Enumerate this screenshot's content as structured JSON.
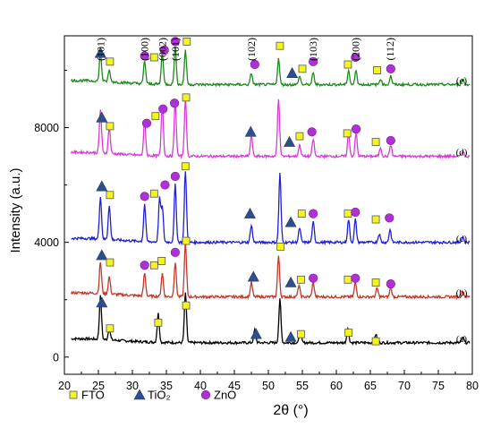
{
  "chart_data": {
    "type": "line",
    "xlabel": "2θ (°)",
    "ylabel": "Intensity (a.u.)",
    "xlim": [
      20,
      80
    ],
    "ylim": [
      -600,
      11200
    ],
    "x_ticks": [
      20,
      25,
      30,
      35,
      40,
      45,
      50,
      55,
      60,
      65,
      70,
      75,
      80
    ],
    "y_ticks": [
      0,
      4000,
      8000
    ],
    "grid": false,
    "legend": {
      "placement": "bottom-left",
      "items": [
        {
          "label": "FTO",
          "marker": "square",
          "color": "#f5f51e"
        },
        {
          "label": "TiO₂",
          "marker": "triangle",
          "color": "#2e4f8c"
        },
        {
          "label": "ZnO",
          "marker": "circle",
          "color": "#b030d8"
        }
      ]
    },
    "plane_labels": [
      {
        "text": "(101)",
        "x": 25.3
      },
      {
        "text": "(100)",
        "x": 31.8
      },
      {
        "text": "(002)",
        "x": 34.4
      },
      {
        "text": "(101)",
        "x": 36.3
      },
      {
        "text": "(102)",
        "x": 47.5
      },
      {
        "text": "(103)",
        "x": 56.6
      },
      {
        "text": "(200)",
        "x": 62.8
      },
      {
        "text": "(112)",
        "x": 67.9
      }
    ],
    "series": [
      {
        "name": "(a)",
        "color": "#000000",
        "baseline": 500,
        "peaks": [
          [
            25.3,
            1500
          ],
          [
            26.6,
            400
          ],
          [
            33.8,
            1000
          ],
          [
            37.8,
            1750
          ],
          [
            48.0,
            450
          ],
          [
            51.7,
            1500
          ],
          [
            54.7,
            350
          ],
          [
            61.7,
            500
          ],
          [
            65.8,
            300
          ],
          [
            78.6,
            200
          ]
        ],
        "markers": [
          {
            "type": "triangle",
            "x": 25.5,
            "y": 1900
          },
          {
            "type": "square",
            "x": 26.7,
            "y": 1000
          },
          {
            "type": "square",
            "x": 33.8,
            "y": 1200
          },
          {
            "type": "square",
            "x": 37.9,
            "y": 1800
          },
          {
            "type": "triangle",
            "x": 48.2,
            "y": 800
          },
          {
            "type": "triangle",
            "x": 53.3,
            "y": 700
          },
          {
            "type": "square",
            "x": 54.8,
            "y": 800
          },
          {
            "type": "square",
            "x": 61.8,
            "y": 850
          },
          {
            "type": "square",
            "x": 65.8,
            "y": 550
          }
        ]
      },
      {
        "name": "(b)",
        "color": "#c0392b",
        "baseline": 2100,
        "peaks": [
          [
            25.3,
            1100
          ],
          [
            26.6,
            600
          ],
          [
            31.8,
            800
          ],
          [
            34.4,
            800
          ],
          [
            36.3,
            1200
          ],
          [
            37.8,
            1900
          ],
          [
            47.5,
            500
          ],
          [
            51.5,
            1400
          ],
          [
            54.5,
            400
          ],
          [
            56.6,
            500
          ],
          [
            62.8,
            500
          ],
          [
            66.0,
            300
          ],
          [
            68.0,
            300
          ],
          [
            78.6,
            200
          ]
        ],
        "markers": [
          {
            "type": "triangle",
            "x": 25.5,
            "y": 3550
          },
          {
            "type": "square",
            "x": 26.7,
            "y": 3300
          },
          {
            "type": "circle",
            "x": 31.8,
            "y": 3200
          },
          {
            "type": "square",
            "x": 33.2,
            "y": 3200
          },
          {
            "type": "square",
            "x": 34.3,
            "y": 3350
          },
          {
            "type": "circle",
            "x": 36.3,
            "y": 3650
          },
          {
            "type": "square",
            "x": 37.9,
            "y": 4050
          },
          {
            "type": "triangle",
            "x": 47.8,
            "y": 2800
          },
          {
            "type": "square",
            "x": 51.8,
            "y": 3850
          },
          {
            "type": "triangle",
            "x": 53.3,
            "y": 2600
          },
          {
            "type": "square",
            "x": 54.8,
            "y": 2700
          },
          {
            "type": "circle",
            "x": 56.6,
            "y": 2750
          },
          {
            "type": "square",
            "x": 61.7,
            "y": 2700
          },
          {
            "type": "circle",
            "x": 62.8,
            "y": 2750
          },
          {
            "type": "square",
            "x": 65.8,
            "y": 2600
          },
          {
            "type": "circle",
            "x": 68.0,
            "y": 2550
          }
        ]
      },
      {
        "name": "(c)",
        "color": "#1f1fd6",
        "baseline": 4000,
        "peaks": [
          [
            25.3,
            1500
          ],
          [
            26.6,
            1200
          ],
          [
            31.8,
            1300
          ],
          [
            34.0,
            1500
          ],
          [
            34.4,
            1200
          ],
          [
            36.3,
            2000
          ],
          [
            37.8,
            2500
          ],
          [
            47.5,
            600
          ],
          [
            51.7,
            2400
          ],
          [
            54.6,
            500
          ],
          [
            56.6,
            700
          ],
          [
            61.8,
            800
          ],
          [
            62.8,
            800
          ],
          [
            66.3,
            300
          ],
          [
            67.9,
            450
          ],
          [
            78.6,
            200
          ]
        ],
        "markers": [
          {
            "type": "triangle",
            "x": 25.5,
            "y": 5950
          },
          {
            "type": "square",
            "x": 26.7,
            "y": 5650
          },
          {
            "type": "circle",
            "x": 31.8,
            "y": 5600
          },
          {
            "type": "square",
            "x": 33.2,
            "y": 5700
          },
          {
            "type": "circle",
            "x": 34.8,
            "y": 6000
          },
          {
            "type": "circle",
            "x": 36.3,
            "y": 6300
          },
          {
            "type": "square",
            "x": 37.8,
            "y": 6650
          },
          {
            "type": "triangle",
            "x": 47.3,
            "y": 5000
          },
          {
            "type": "triangle",
            "x": 53.3,
            "y": 4700
          },
          {
            "type": "square",
            "x": 54.9,
            "y": 5000
          },
          {
            "type": "circle",
            "x": 56.6,
            "y": 5000
          },
          {
            "type": "square",
            "x": 61.7,
            "y": 5000
          },
          {
            "type": "circle",
            "x": 62.8,
            "y": 5050
          },
          {
            "type": "square",
            "x": 65.8,
            "y": 4800
          },
          {
            "type": "circle",
            "x": 67.8,
            "y": 4850
          }
        ]
      },
      {
        "name": "(d)",
        "color": "#d63bd6",
        "baseline": 7000,
        "peaks": [
          [
            25.3,
            1500
          ],
          [
            26.6,
            900
          ],
          [
            31.8,
            1200
          ],
          [
            34.4,
            1800
          ],
          [
            36.3,
            1900
          ],
          [
            37.8,
            2000
          ],
          [
            47.5,
            700
          ],
          [
            51.5,
            2000
          ],
          [
            54.6,
            400
          ],
          [
            56.6,
            600
          ],
          [
            61.8,
            800
          ],
          [
            62.9,
            800
          ],
          [
            66.5,
            300
          ],
          [
            68.0,
            400
          ],
          [
            78.6,
            200
          ]
        ],
        "markers": [
          {
            "type": "triangle",
            "x": 25.5,
            "y": 8350
          },
          {
            "type": "square",
            "x": 26.7,
            "y": 8050
          },
          {
            "type": "circle",
            "x": 32.1,
            "y": 8150
          },
          {
            "type": "square",
            "x": 33.4,
            "y": 8400
          },
          {
            "type": "circle",
            "x": 34.5,
            "y": 8650
          },
          {
            "type": "circle",
            "x": 36.2,
            "y": 8850
          },
          {
            "type": "square",
            "x": 37.9,
            "y": 9050
          },
          {
            "type": "triangle",
            "x": 47.4,
            "y": 7850
          },
          {
            "type": "triangle",
            "x": 53.1,
            "y": 7500
          },
          {
            "type": "square",
            "x": 54.6,
            "y": 7700
          },
          {
            "type": "circle",
            "x": 56.4,
            "y": 7850
          },
          {
            "type": "square",
            "x": 61.6,
            "y": 7800
          },
          {
            "type": "circle",
            "x": 62.9,
            "y": 7950
          },
          {
            "type": "square",
            "x": 65.8,
            "y": 7500
          },
          {
            "type": "circle",
            "x": 68.0,
            "y": 7550
          }
        ]
      },
      {
        "name": "(e)",
        "color": "#1e8a1e",
        "baseline": 9500,
        "peaks": [
          [
            25.3,
            1000
          ],
          [
            26.6,
            400
          ],
          [
            31.8,
            800
          ],
          [
            34.4,
            1100
          ],
          [
            36.3,
            1300
          ],
          [
            37.8,
            1200
          ],
          [
            47.5,
            400
          ],
          [
            51.5,
            900
          ],
          [
            54.6,
            300
          ],
          [
            56.6,
            400
          ],
          [
            61.8,
            500
          ],
          [
            62.9,
            500
          ],
          [
            66.5,
            200
          ],
          [
            68.0,
            300
          ],
          [
            78.6,
            200
          ]
        ],
        "markers": [
          {
            "type": "triangle",
            "x": 25.3,
            "y": 10600
          },
          {
            "type": "square",
            "x": 26.7,
            "y": 10300
          },
          {
            "type": "circle",
            "x": 31.8,
            "y": 10500
          },
          {
            "type": "square",
            "x": 33.2,
            "y": 10450
          },
          {
            "type": "circle",
            "x": 34.7,
            "y": 10700
          },
          {
            "type": "circle",
            "x": 36.3,
            "y": 11000
          },
          {
            "type": "square",
            "x": 38.0,
            "y": 11000
          },
          {
            "type": "circle",
            "x": 48.0,
            "y": 10200
          },
          {
            "type": "square",
            "x": 51.7,
            "y": 10850
          },
          {
            "type": "triangle",
            "x": 53.5,
            "y": 9900
          },
          {
            "type": "square",
            "x": 55.0,
            "y": 10050
          },
          {
            "type": "circle",
            "x": 56.6,
            "y": 10300
          },
          {
            "type": "square",
            "x": 61.7,
            "y": 10200
          },
          {
            "type": "circle",
            "x": 62.8,
            "y": 10450
          },
          {
            "type": "square",
            "x": 66.0,
            "y": 10000
          },
          {
            "type": "circle",
            "x": 68.0,
            "y": 10050
          }
        ]
      }
    ]
  }
}
